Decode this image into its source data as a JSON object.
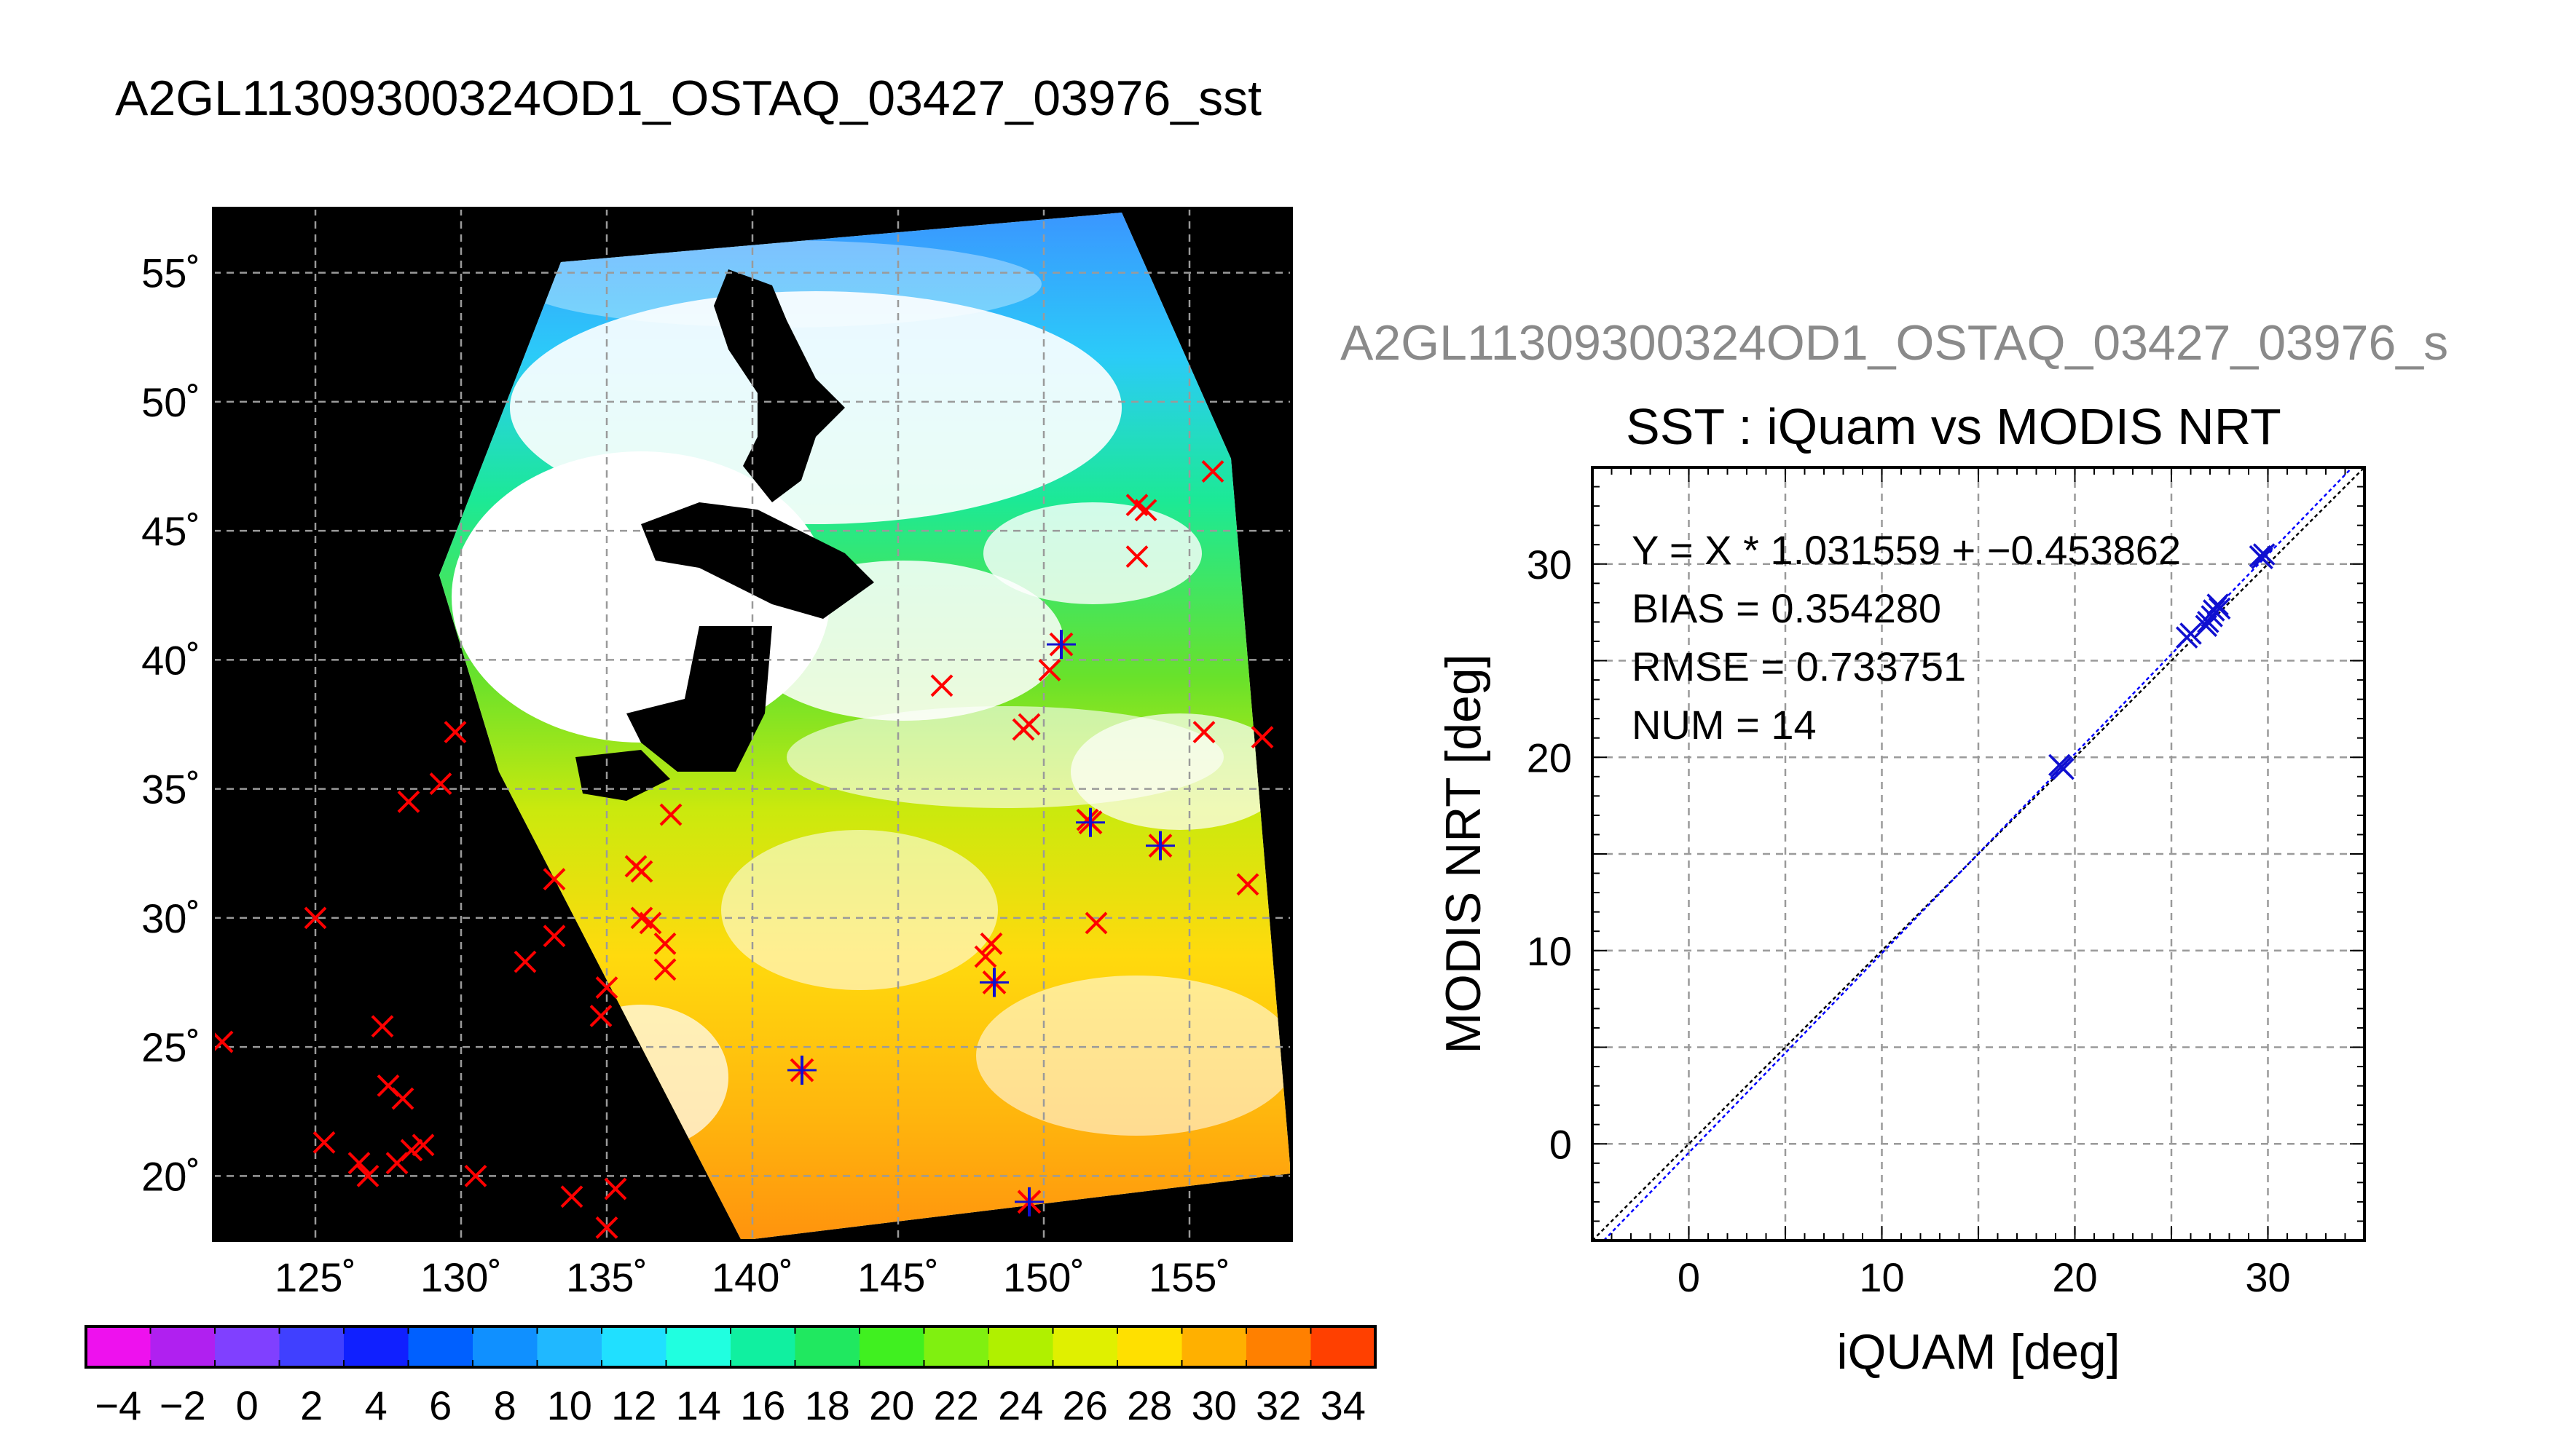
{
  "page": {
    "main_title": "A2GL11309300324OD1_OSTAQ_03427_03976_sst",
    "ghost_title": "A2GL11309300324OD1_OSTAQ_03427_03976_s"
  },
  "colors": {
    "land": "#000000",
    "cloud": "#ffffff",
    "grid": "#9a9a9a",
    "in_situ_marker": "#ff0000",
    "matchup_marker": "#1010d0",
    "fit_line": "#0000ff"
  },
  "chart_data": [
    {
      "type": "map",
      "title": "A2GL11309300324OD1_OSTAQ_03427_03976_sst",
      "xlabel": "",
      "ylabel": "",
      "lon_range": [
        121.5,
        158.5
      ],
      "lat_range": [
        17.5,
        57.5
      ],
      "lon_ticks": [
        125,
        130,
        135,
        140,
        145,
        150,
        155
      ],
      "lon_tick_labels": [
        "125˚",
        "130˚",
        "135˚",
        "140˚",
        "145˚",
        "150˚",
        "155˚"
      ],
      "lat_ticks": [
        20,
        25,
        30,
        35,
        40,
        45,
        50,
        55
      ],
      "lat_tick_labels": [
        "20˚",
        "25˚",
        "30˚",
        "35˚",
        "40˚",
        "45˚",
        "50˚",
        "55˚"
      ],
      "grid": true,
      "in_situ_points": [
        [
          125,
          30
        ],
        [
          121.8,
          25.2
        ],
        [
          125.3,
          21.3
        ],
        [
          126.5,
          20.5
        ],
        [
          126.8,
          20
        ],
        [
          127.5,
          23.5
        ],
        [
          128,
          23
        ],
        [
          127.8,
          20.5
        ],
        [
          128.7,
          21.2
        ],
        [
          128.3,
          21
        ],
        [
          127.3,
          25.8
        ],
        [
          128.2,
          34.5
        ],
        [
          129.3,
          35.2
        ],
        [
          129.8,
          37.2
        ],
        [
          130.5,
          20
        ],
        [
          132.2,
          28.3
        ],
        [
          133.2,
          29.3
        ],
        [
          133.2,
          31.5
        ],
        [
          133.8,
          19.2
        ],
        [
          135.3,
          19.5
        ],
        [
          134.8,
          26.2
        ],
        [
          135,
          27.3
        ],
        [
          135,
          18
        ],
        [
          136,
          32
        ],
        [
          136.2,
          31.8
        ],
        [
          136.5,
          29.8
        ],
        [
          136.2,
          30
        ],
        [
          137,
          29
        ],
        [
          137,
          28
        ],
        [
          137.2,
          34
        ],
        [
          146.5,
          39
        ],
        [
          148.2,
          29
        ],
        [
          148,
          28.5
        ],
        [
          149.3,
          37.3
        ],
        [
          149.5,
          37.5
        ],
        [
          150.2,
          39.6
        ],
        [
          151.8,
          29.8
        ],
        [
          151.5,
          33.8
        ],
        [
          153.2,
          46
        ],
        [
          153.5,
          45.8
        ],
        [
          153.2,
          44
        ],
        [
          155.5,
          37.2
        ],
        [
          155.8,
          47.3
        ],
        [
          157,
          31.3
        ],
        [
          157.5,
          37
        ]
      ],
      "matchup_points": [
        [
          141.7,
          24.1
        ],
        [
          148.3,
          27.5
        ],
        [
          149.5,
          19
        ],
        [
          150.6,
          40.6
        ],
        [
          151.6,
          33.7
        ],
        [
          154,
          32.8
        ]
      ],
      "colorbar": {
        "min": -5,
        "max": 35,
        "step": 2,
        "tick_labels": [
          "−4",
          "−2",
          "0",
          "2",
          "4",
          "6",
          "8",
          "10",
          "12",
          "14",
          "16",
          "18",
          "20",
          "22",
          "24",
          "26",
          "28",
          "30",
          "32",
          "34"
        ]
      }
    },
    {
      "type": "scatter",
      "title": "SST : iQuam vs MODIS NRT",
      "xlabel": "iQUAM [deg]",
      "ylabel": "MODIS NRT [deg]",
      "xlim": [
        -5,
        35
      ],
      "ylim": [
        -5,
        35
      ],
      "xticks": [
        0,
        10,
        20,
        30
      ],
      "yticks": [
        0,
        10,
        20,
        30
      ],
      "grid": true,
      "points": [
        [
          19.2,
          19.6
        ],
        [
          19.4,
          19.4
        ],
        [
          25.8,
          26.2
        ],
        [
          26.0,
          26.4
        ],
        [
          26.8,
          26.8
        ],
        [
          27.2,
          27.6
        ],
        [
          27.4,
          27.9
        ],
        [
          27.1,
          27.3
        ],
        [
          29.6,
          30.4
        ],
        [
          29.8,
          30.5
        ],
        [
          19.3,
          19.5
        ],
        [
          26.9,
          27.0
        ],
        [
          27.5,
          27.7
        ],
        [
          29.7,
          30.3
        ]
      ],
      "fit": {
        "slope": 1.031559,
        "intercept": -0.453862
      },
      "annotations": [
        "Y = X * 1.031559 + −0.453862",
        "BIAS = 0.354280",
        "RMSE = 0.733751",
        "NUM = 14"
      ]
    }
  ]
}
